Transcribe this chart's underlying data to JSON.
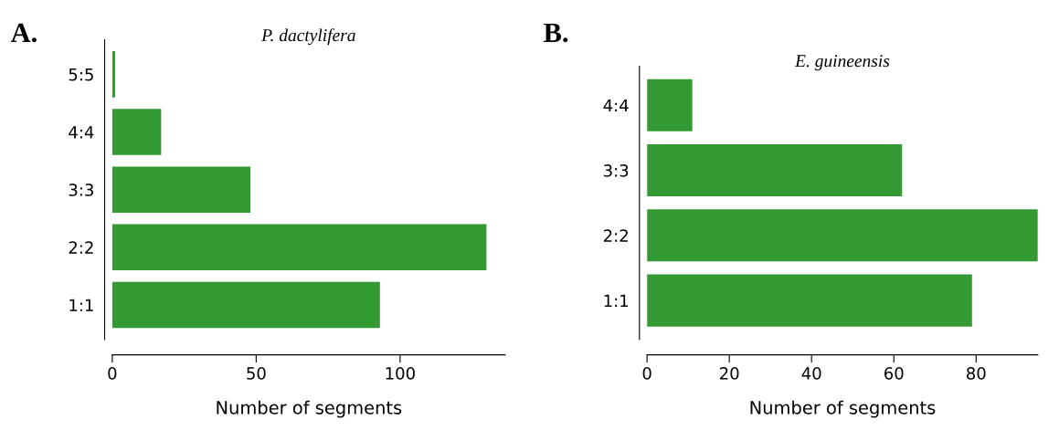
{
  "chart_data": [
    {
      "type": "bar",
      "orientation": "horizontal",
      "title": "P. dactylifera",
      "xlabel": "Number of segments",
      "annotations": [
        "A."
      ],
      "categories": [
        "5:5",
        "4:4",
        "3:3",
        "2:2",
        "1:1"
      ],
      "values": [
        1,
        17,
        48,
        130,
        93
      ],
      "color": "#339933",
      "xlim": [
        0,
        136.5
      ],
      "xticks": [
        0,
        50,
        100
      ],
      "grid": false,
      "legend": false
    },
    {
      "type": "bar",
      "orientation": "horizontal",
      "title": "E. guineensis",
      "xlabel": "Number of segments",
      "annotations": [
        "B."
      ],
      "categories": [
        "4:4",
        "3:3",
        "2:2",
        "1:1"
      ],
      "values": [
        11,
        62,
        95,
        79
      ],
      "color": "#339933",
      "xlim": [
        0,
        95
      ],
      "xticks": [
        0,
        20,
        40,
        60,
        80
      ],
      "grid": false,
      "legend": false
    }
  ]
}
